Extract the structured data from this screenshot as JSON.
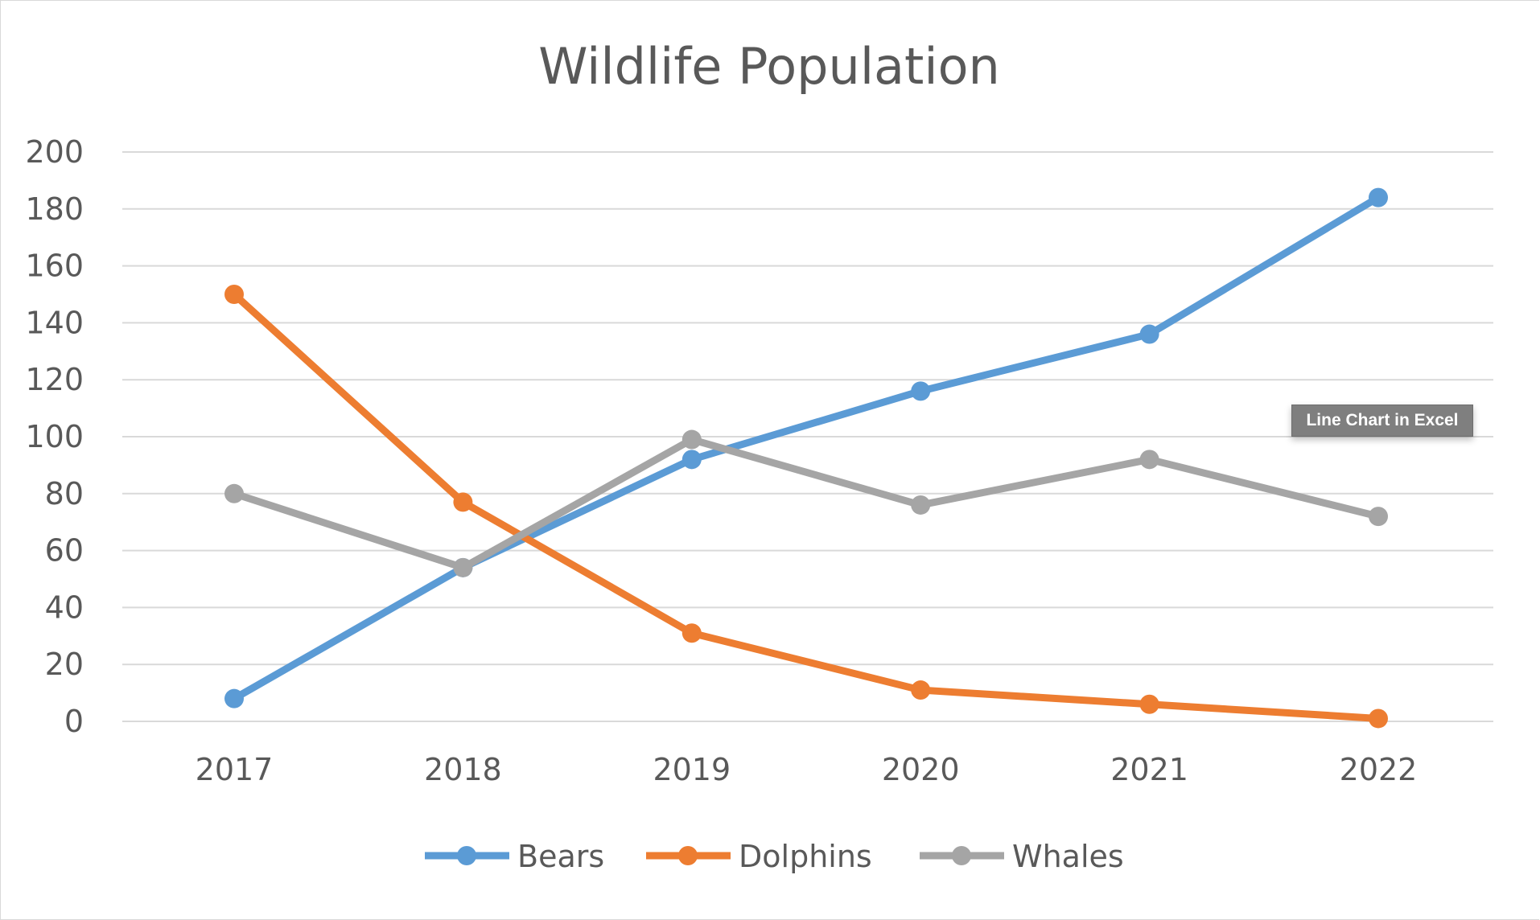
{
  "chart_data": {
    "type": "line",
    "title": "Wildlife Population",
    "categories": [
      "2017",
      "2018",
      "2019",
      "2020",
      "2021",
      "2022"
    ],
    "series": [
      {
        "name": "Bears",
        "color": "#5b9bd5",
        "values": [
          8,
          54,
          92,
          116,
          136,
          184
        ]
      },
      {
        "name": "Dolphins",
        "color": "#ed7d31",
        "values": [
          150,
          77,
          31,
          11,
          6,
          1
        ]
      },
      {
        "name": "Whales",
        "color": "#a5a5a5",
        "values": [
          80,
          54,
          99,
          76,
          92,
          72
        ]
      }
    ],
    "ylim": [
      0,
      200
    ],
    "yticks": [
      0,
      20,
      40,
      60,
      80,
      100,
      120,
      140,
      160,
      180,
      200
    ],
    "xlabel": "",
    "ylabel": "",
    "grid": true,
    "legend": "bottom"
  },
  "tooltip": "Line Chart in Excel"
}
